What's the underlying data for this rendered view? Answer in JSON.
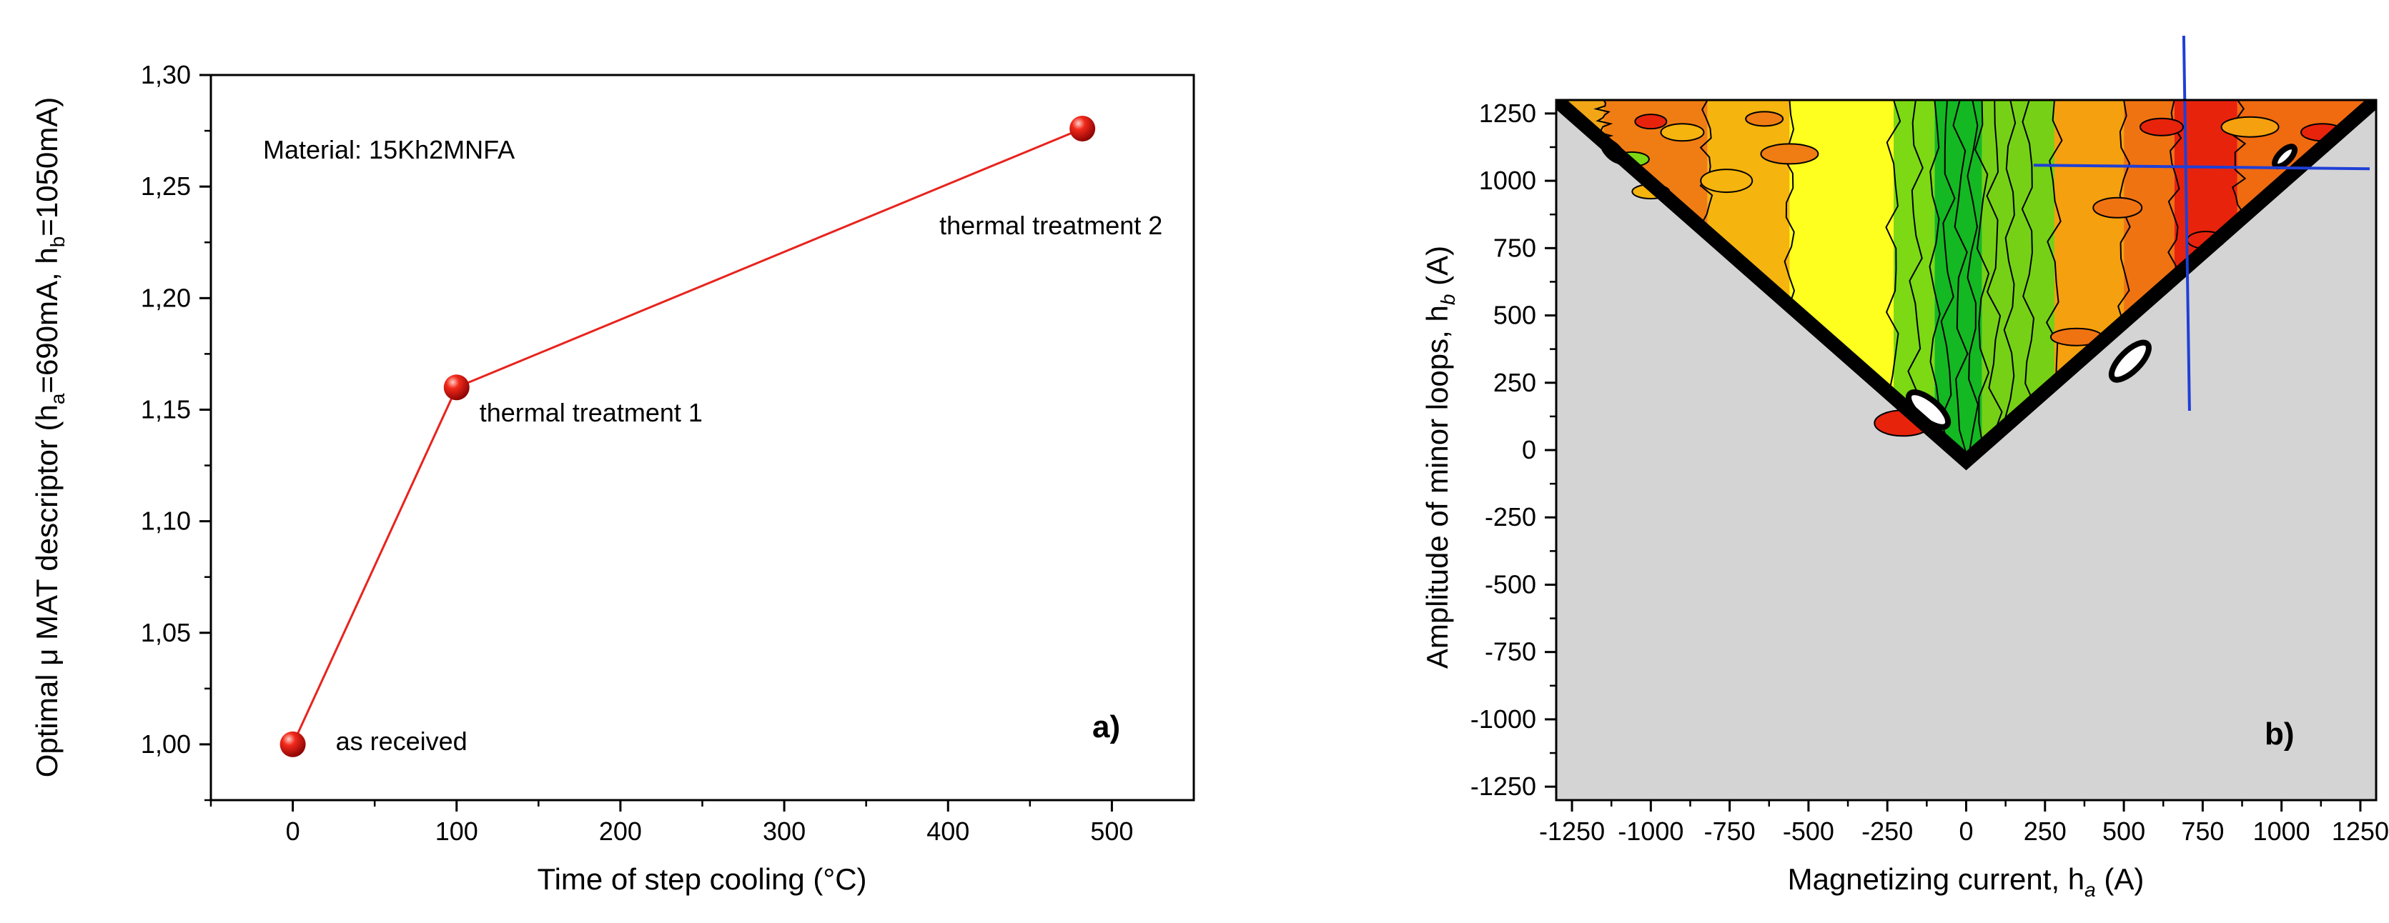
{
  "chart_data": [
    {
      "type": "line",
      "title": "",
      "xlabel": "Time of step cooling (°C)",
      "ylabel": "Optimal μ MAT descriptor (hₐ=690mA, hᵦ=1050mA)",
      "ylabel_parts": [
        "Optimal μ MAT descriptor (h",
        "a",
        "=690mA, h",
        "b",
        "=1050mA)"
      ],
      "xlim": [
        -50,
        550
      ],
      "ylim": [
        0.975,
        1.3
      ],
      "x_ticks": [
        0,
        100,
        200,
        300,
        400,
        500
      ],
      "x_tick_labels": [
        "0",
        "100",
        "200",
        "300",
        "400",
        "500"
      ],
      "y_ticks": [
        1.0,
        1.05,
        1.1,
        1.15,
        1.2,
        1.25,
        1.3
      ],
      "y_tick_labels": [
        "1,00",
        "1,05",
        "1,10",
        "1,15",
        "1,20",
        "1,25",
        "1,30"
      ],
      "series": [
        {
          "name": "Material: 15Kh2MNFA",
          "x": [
            0,
            100,
            482
          ],
          "y": [
            1.0,
            1.16,
            1.276
          ],
          "point_labels": [
            "as received",
            "thermal treatment 1",
            "thermal treatment 2"
          ],
          "line_color": "#e8231d",
          "marker_color": "#e8120c"
        }
      ],
      "annotation": "Material: 15Kh2MNFA",
      "panel_label": "a)"
    },
    {
      "type": "heatmap",
      "title": "",
      "xlabel_parts": [
        "Magnetizing current, h",
        "a",
        " (A)"
      ],
      "ylabel_parts": [
        "Amplitude of minor loops, h",
        "b",
        " (A)"
      ],
      "xlim": [
        -1300,
        1300
      ],
      "ylim": [
        -1300,
        1300
      ],
      "x_ticks": [
        -1250,
        -1000,
        -750,
        -500,
        -250,
        0,
        250,
        500,
        750,
        1000,
        1250
      ],
      "x_tick_labels": [
        "-1250",
        "-1000",
        "-750",
        "-500",
        "-250",
        "0",
        "250",
        "500",
        "750",
        "1000",
        "1250"
      ],
      "y_ticks": [
        1250,
        1000,
        750,
        500,
        250,
        0,
        -250,
        -500,
        -750,
        -1000,
        -1250
      ],
      "y_tick_labels": [
        "1250",
        "1000",
        "750",
        "500",
        "250",
        "0",
        "-250",
        "-500",
        "-750",
        "-1000",
        "-1250"
      ],
      "contour_bands": [
        {
          "x_from": -1300,
          "x_to": -1150,
          "color": "#f2a616"
        },
        {
          "x_from": -1150,
          "x_to": -820,
          "color": "#f07d13"
        },
        {
          "x_from": -820,
          "x_to": -560,
          "color": "#f5b40e"
        },
        {
          "x_from": -560,
          "x_to": -230,
          "color": "#ffff1f"
        },
        {
          "x_from": -230,
          "x_to": -100,
          "color": "#7cd914"
        },
        {
          "x_from": -100,
          "x_to": 50,
          "color": "#14b822"
        },
        {
          "x_from": 50,
          "x_to": 280,
          "color": "#76d116"
        },
        {
          "x_from": 280,
          "x_to": 500,
          "color": "#f5a00f"
        },
        {
          "x_from": 500,
          "x_to": 660,
          "color": "#f07312"
        },
        {
          "x_from": 660,
          "x_to": 860,
          "color": "#e8230c"
        },
        {
          "x_from": 860,
          "x_to": 1300,
          "color": "#f06a10"
        }
      ],
      "crosshair": {
        "x": 690,
        "y": 1050,
        "color": "#1f3fd6"
      },
      "undefined_region_color": "#d4d4d4",
      "panel_label": "b)"
    }
  ]
}
